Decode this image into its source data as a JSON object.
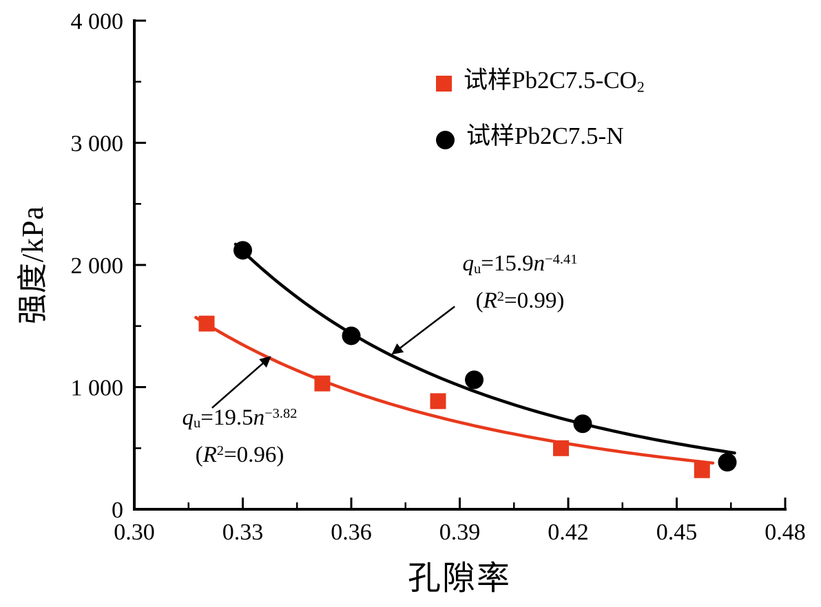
{
  "chart_data": {
    "type": "scatter",
    "title": "",
    "xlabel": "孔隙率",
    "ylabel": "强度/kPa",
    "xlim": [
      0.3,
      0.48
    ],
    "ylim": [
      0,
      4000
    ],
    "x_ticks": [
      0.3,
      0.33,
      0.36,
      0.39,
      0.42,
      0.45,
      0.48
    ],
    "x_tick_labels": [
      "0.30",
      "0.33",
      "0.36",
      "0.39",
      "0.42",
      "0.45",
      "0.48"
    ],
    "x_minor_ticks": [
      0.315,
      0.345,
      0.375,
      0.405,
      0.435,
      0.465
    ],
    "y_ticks": [
      0,
      1000,
      2000,
      3000,
      4000
    ],
    "y_tick_labels": [
      "0",
      "1 000",
      "2 000",
      "3 000",
      "4 000"
    ],
    "y_minor_ticks": [
      500,
      1500,
      2500,
      3500
    ],
    "grid": false,
    "legend_position": "upper right",
    "series": [
      {
        "name": "试样Pb2C7.5-N",
        "marker": "circle",
        "color": "#000000",
        "points": [
          [
            0.33,
            2120
          ],
          [
            0.36,
            1420
          ],
          [
            0.394,
            1060
          ],
          [
            0.424,
            700
          ],
          [
            0.464,
            385
          ]
        ],
        "fit": {
          "type": "power",
          "equation": "qu=15.9n^-4.41",
          "a": 15.9,
          "b": -4.41,
          "r2": 0.99,
          "range": [
            0.328,
            0.466
          ]
        }
      },
      {
        "name": "试样Pb2C7.5-CO2",
        "marker": "square",
        "color": "#e8391d",
        "points": [
          [
            0.32,
            1520
          ],
          [
            0.352,
            1030
          ],
          [
            0.384,
            885
          ],
          [
            0.418,
            500
          ],
          [
            0.457,
            320
          ]
        ],
        "fit": {
          "type": "power",
          "equation": "qu=19.5n^-3.82",
          "a": 19.5,
          "b": -3.82,
          "r2": 0.96,
          "range": [
            0.317,
            0.46
          ]
        }
      }
    ],
    "arrows": [
      {
        "from": [
          0.3886,
          1660
        ],
        "to": [
          0.3715,
          1275
        ]
      },
      {
        "from": [
          0.3215,
          830
        ],
        "to": [
          0.3375,
          1245
        ]
      }
    ]
  },
  "legend": {
    "items": [
      {
        "label_main": "试样Pb2C7.5-CO",
        "label_sub": "2",
        "marker": "square",
        "color": "#e8391d"
      },
      {
        "label_main": "试样Pb2C7.5-N",
        "label_sub": "",
        "marker": "circle",
        "color": "#000000"
      }
    ]
  },
  "annotations": {
    "black_fit": {
      "q": "q",
      "q_sub": "u",
      "mid": "=15.9",
      "n": "n",
      "exp": "−4.41",
      "paren_open": "(",
      "r": "R",
      "r_sup": "2",
      "r_rest": "=0.99)"
    },
    "red_fit": {
      "q": "q",
      "q_sub": "u",
      "mid": "=19.5",
      "n": "n",
      "exp": "−3.82",
      "paren_open": "(",
      "r": "R",
      "r_sup": "2",
      "r_rest": "=0.96)"
    }
  }
}
